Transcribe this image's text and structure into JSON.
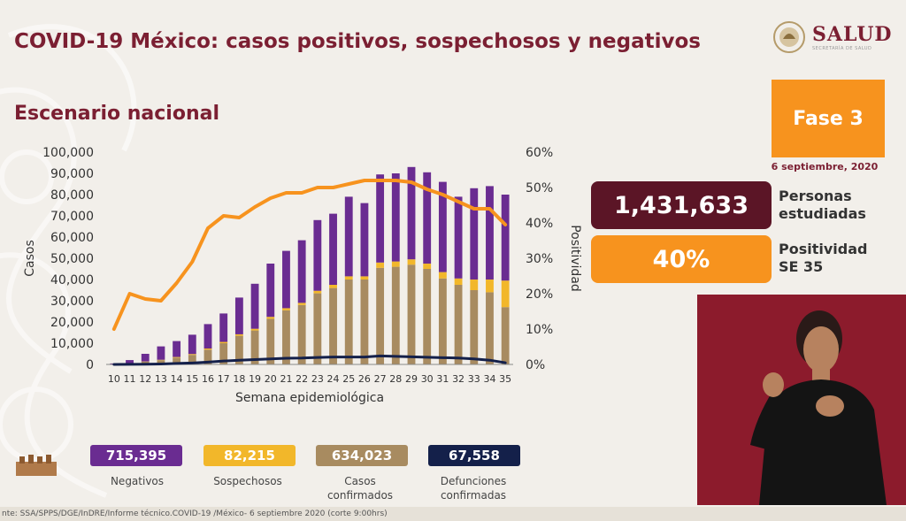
{
  "header": {
    "title": "COVID-19 México: casos positivos, sospechosos y negativos",
    "subtitle": "Escenario nacional",
    "logo_text": "SALUD",
    "logo_sub": "SECRETARÍA DE SALUD"
  },
  "side": {
    "fase": "Fase 3",
    "date": "6 septiembre, 2020",
    "personas_value": "1,431,633",
    "personas_label_1": "Personas",
    "personas_label_2": "estudiadas",
    "positividad_value": "40%",
    "positividad_label_1": "Positividad",
    "positividad_label_2": "SE 35"
  },
  "legend": [
    {
      "value": "715,395",
      "label_1": "Negativos",
      "label_2": "",
      "color": "#6a2c91"
    },
    {
      "value": "82,215",
      "label_1": "Sospechosos",
      "label_2": "",
      "color": "#f2b72a"
    },
    {
      "value": "634,023",
      "label_1": "Casos",
      "label_2": "confirmados",
      "color": "#a88b60"
    },
    {
      "value": "67,558",
      "label_1": "Defunciones",
      "label_2": "confirmadas",
      "color": "#14204a"
    }
  ],
  "source": "nte: SSA/SPPS/DGE/InDRE/Informe técnico.COVID-19 /México- 6 septiembre 2020 (corte 9:00hrs)",
  "chart_data": {
    "type": "bar",
    "xlabel": "Semana epidemiológica",
    "ylabel": "Casos",
    "y2label": "Positividad",
    "ylim": [
      0,
      100000
    ],
    "y2lim": [
      0,
      60
    ],
    "yticks": [
      "0",
      "10,000",
      "20,000",
      "30,000",
      "40,000",
      "50,000",
      "60,000",
      "70,000",
      "80,000",
      "90,000",
      "100,000"
    ],
    "y2ticks": [
      "0%",
      "10%",
      "20%",
      "30%",
      "40%",
      "50%",
      "60%"
    ],
    "categories": [
      "10",
      "11",
      "12",
      "13",
      "14",
      "15",
      "16",
      "17",
      "18",
      "19",
      "20",
      "21",
      "22",
      "23",
      "24",
      "25",
      "26",
      "27",
      "28",
      "29",
      "30",
      "31",
      "32",
      "33",
      "34",
      "35"
    ],
    "stacked_series": [
      {
        "name": "Casos confirmados",
        "color": "#a88b60",
        "values": [
          50,
          500,
          1300,
          2000,
          3200,
          4500,
          7000,
          10000,
          13500,
          16000,
          21500,
          25500,
          28000,
          33500,
          36000,
          40000,
          40000,
          45500,
          46000,
          47000,
          45000,
          40500,
          37500,
          35000,
          34000,
          27000
        ]
      },
      {
        "name": "Sospechosos",
        "color": "#f2b72a",
        "values": [
          10,
          50,
          100,
          200,
          300,
          400,
          500,
          600,
          700,
          800,
          900,
          1000,
          1000,
          1200,
          1500,
          1500,
          1500,
          2500,
          2500,
          2500,
          2500,
          3000,
          3000,
          5000,
          6000,
          12500
        ]
      },
      {
        "name": "Negativos",
        "color": "#6a2c91",
        "values": [
          400,
          1500,
          3600,
          6300,
          7500,
          9100,
          11500,
          13400,
          17300,
          21200,
          25100,
          27000,
          29500,
          33300,
          33500,
          37500,
          34500,
          41500,
          41500,
          43500,
          43000,
          42500,
          38500,
          43000,
          44000,
          40500
        ]
      }
    ],
    "line_series": [
      {
        "name": "Positividad",
        "color": "#f7931e",
        "axis": "right",
        "values": [
          10,
          20,
          18.5,
          18,
          23,
          29,
          38.5,
          42,
          41.5,
          44.5,
          47,
          48.5,
          48.5,
          50,
          50,
          51,
          52,
          52,
          52,
          51.5,
          49.5,
          48,
          46,
          44,
          44,
          39.5
        ]
      },
      {
        "name": "Defunciones",
        "color": "#14204a",
        "axis": "left",
        "values": [
          0,
          30,
          100,
          200,
          450,
          700,
          1100,
          1600,
          2000,
          2300,
          2600,
          2900,
          3000,
          3300,
          3500,
          3500,
          3500,
          4000,
          3800,
          3600,
          3400,
          3200,
          3000,
          2600,
          2000,
          800
        ]
      }
    ]
  }
}
